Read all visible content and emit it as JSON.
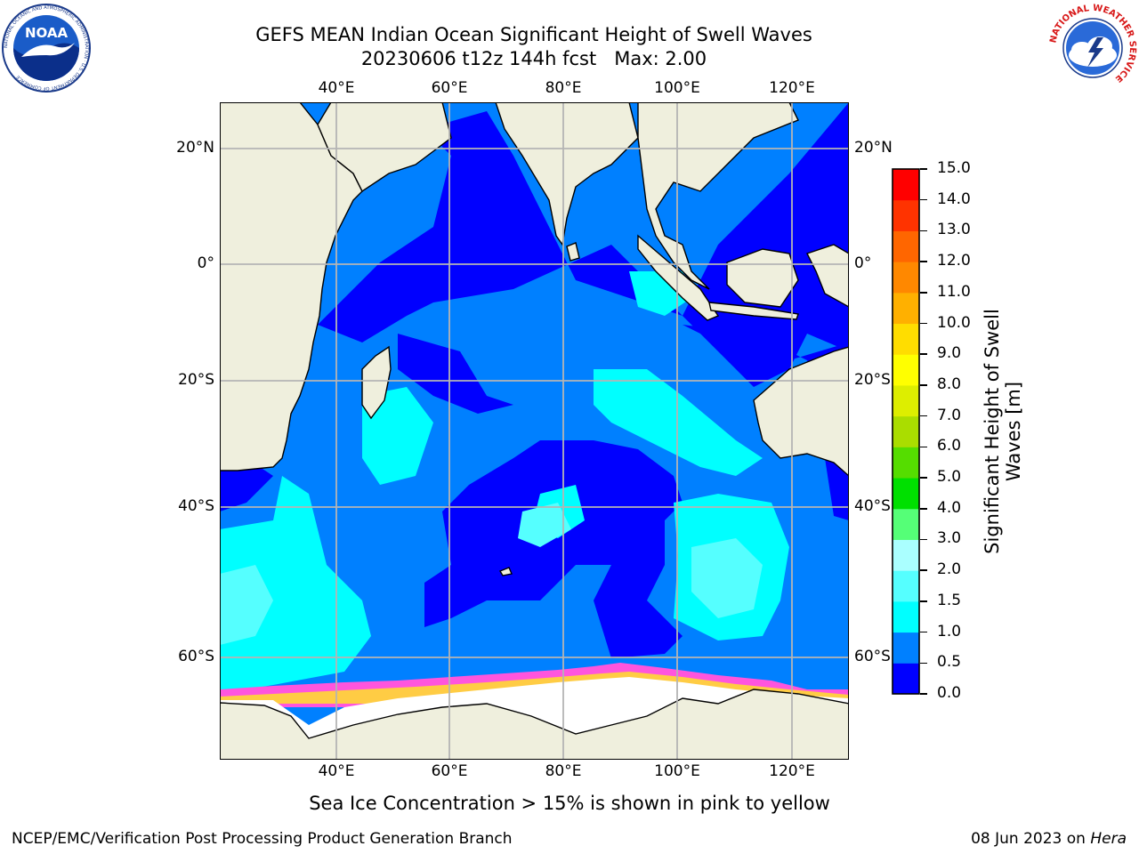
{
  "title": {
    "line1": "GEFS MEAN Indian Ocean Significant Height of Swell Waves",
    "line2": "20230606 t12z 144h fcst   Max: 2.00"
  },
  "logos": {
    "noaa_text": "NOAA",
    "noaa_ring": "NATIONAL OCEANIC AND ATMOSPHERIC ADMINISTRATION · U.S. DEPARTMENT OF COMMERCE",
    "nws_ring": "NATIONAL WEATHER SERVICE"
  },
  "map": {
    "lon_labels": [
      "40°E",
      "60°E",
      "80°E",
      "100°E",
      "120°E"
    ],
    "lat_labels": [
      "20°N",
      "0°",
      "20°S",
      "40°S",
      "60°S"
    ],
    "colors": {
      "land": "#efefdd",
      "ocean_0_05": "#0000ff",
      "ocean_05_10": "#0080ff",
      "ocean_10_15": "#00ffff",
      "ocean_15_20": "#55ffff",
      "sea_ice_pink": "#ff55dd",
      "sea_ice_yellow": "#ffcc44",
      "gridline": "#b4b4b4"
    }
  },
  "colorbar": {
    "label_line1": "Significant Height of Swell",
    "label_line2": "Waves [m]",
    "ticks": [
      "0.0",
      "0.5",
      "1.0",
      "1.5",
      "2.0",
      "3.0",
      "4.0",
      "5.0",
      "6.0",
      "7.0",
      "8.0",
      "9.0",
      "10.0",
      "11.0",
      "12.0",
      "13.0",
      "14.0",
      "15.0"
    ],
    "colors": [
      "#0000ff",
      "#0080ff",
      "#00ffff",
      "#55ffff",
      "#aaffff",
      "#55ff77",
      "#00e000",
      "#55dd00",
      "#aadd00",
      "#ddee00",
      "#ffff00",
      "#ffdd00",
      "#ffb000",
      "#ff8800",
      "#ff6600",
      "#ff3300",
      "#ff0000"
    ]
  },
  "note": "Sea Ice Concentration > 15% is shown in pink to yellow",
  "footer": {
    "left": "NCEP/EMC/Verification Post Processing Product Generation Branch",
    "right_prefix": "08 Jun 2023 on ",
    "right_italic": "Hera"
  }
}
